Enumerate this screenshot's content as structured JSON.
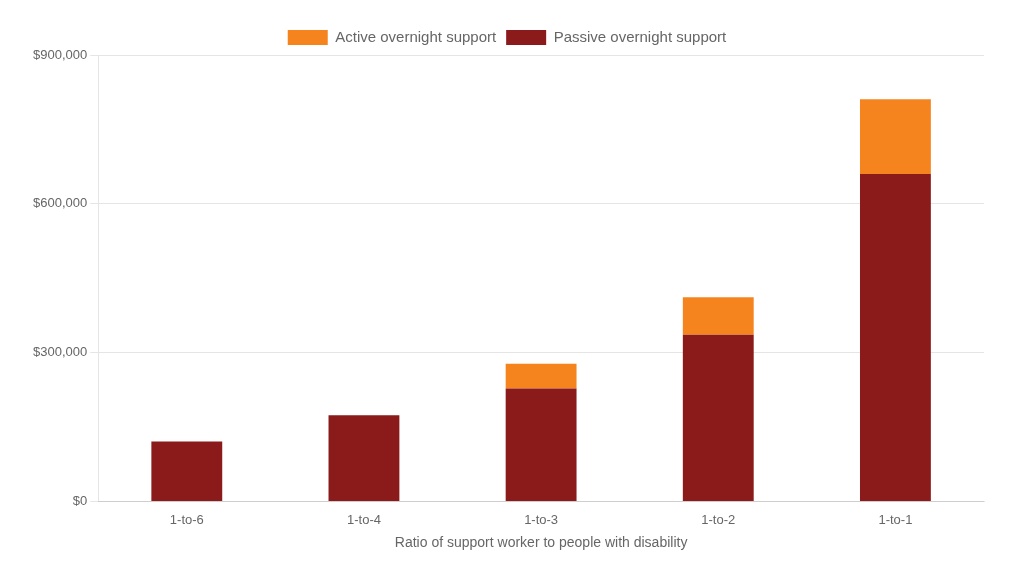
{
  "chart_data": {
    "type": "bar",
    "stacked": true,
    "x_label": "Ratio of support worker to people with disability",
    "categories": [
      "1-to-6",
      "1-to-4",
      "1-to-3",
      "1-to-2",
      "1-to-1"
    ],
    "series": [
      {
        "name": "Passive overnight support",
        "color": "#8B1A1A",
        "values": [
          121000,
          174000,
          228000,
          336000,
          660000
        ]
      },
      {
        "name": "Active overnight support",
        "color": "#F5841F",
        "values": [
          0,
          0,
          50000,
          76000,
          151000
        ]
      }
    ],
    "ylim": [
      0,
      900000
    ],
    "yticks": [
      {
        "value": 0,
        "label": "$0"
      },
      {
        "value": 300000,
        "label": "$300,000"
      },
      {
        "value": 600000,
        "label": "$600,000"
      },
      {
        "value": 900000,
        "label": "$900,000"
      }
    ],
    "grid": true,
    "legend": "top"
  }
}
